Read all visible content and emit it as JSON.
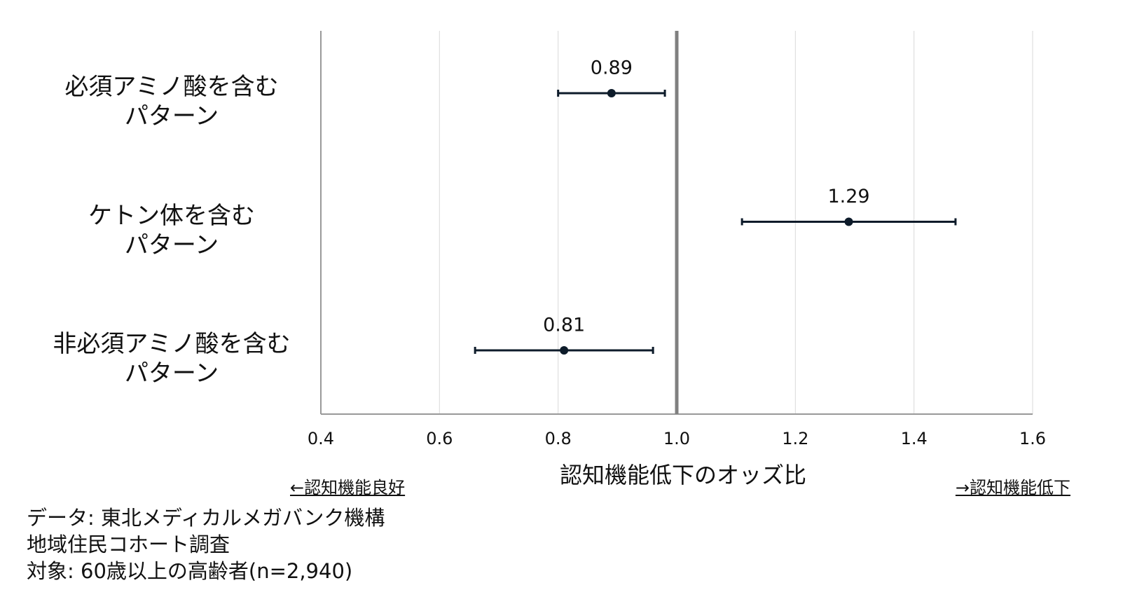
{
  "chart_data": {
    "type": "forest",
    "categories": [
      "必須アミノ酸を含む\nパターン",
      "ケトン体を含む\nパターン",
      "非必須アミノ酸を含む\nパターン"
    ],
    "values": [
      0.89,
      1.29,
      0.81
    ],
    "ci_lower": [
      0.8,
      1.11,
      0.66
    ],
    "ci_upper": [
      0.98,
      1.47,
      0.96
    ],
    "color": "#0d1b2a",
    "xlim": [
      0.4,
      1.6
    ],
    "xticks": [
      0.4,
      0.6,
      0.8,
      {
        "value": 1,
        "label": "1.0"
      },
      1.2,
      1.4,
      1.6
    ],
    "reference_line": 1,
    "grid": true,
    "x_label": "認知機能低下のオッズ比",
    "annotations": [
      "←認知機能良好",
      "→認知機能低下"
    ],
    "notes": [
      "データ: 東北メディカルメガバンク機構",
      "地域住民コホート調査",
      "対象: 60歳以上の高齢者(n=2,940)"
    ]
  }
}
